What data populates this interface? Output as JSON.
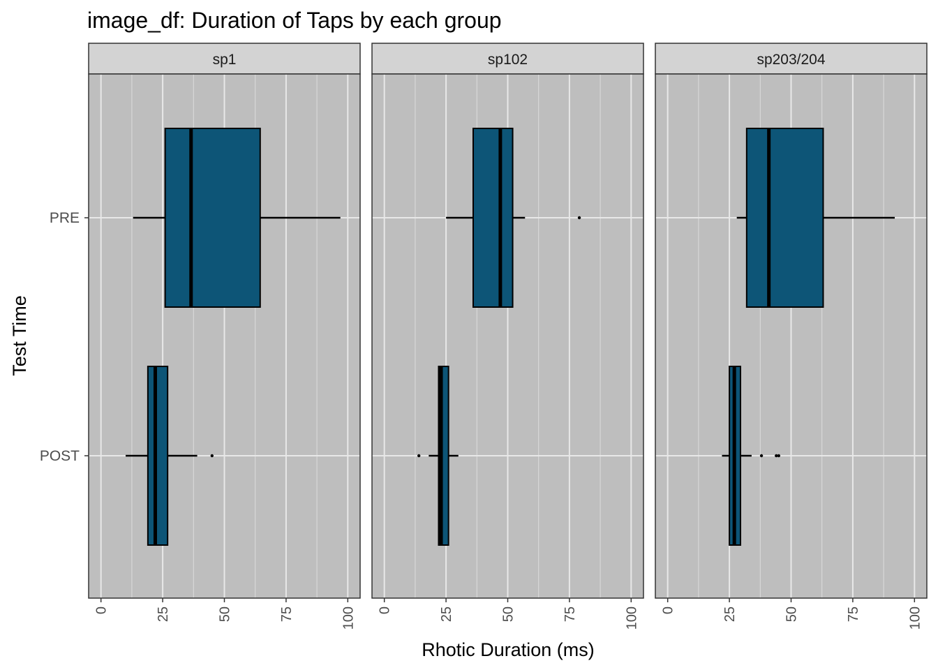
{
  "chart_data": {
    "type": "boxplot",
    "title": "image_df: Duration of Taps by each group",
    "xlabel": "Rhotic Duration (ms)",
    "ylabel": "Test Time",
    "xlim": [
      -5,
      105
    ],
    "x_ticks": [
      0,
      25,
      50,
      75,
      100
    ],
    "x_tick_labels": [
      "0",
      "25",
      "50",
      "75",
      "100"
    ],
    "categories": [
      "PRE",
      "POST"
    ],
    "grid": true,
    "colors": {
      "panel_bg": "#bebebe",
      "grid": "#e8e8e8",
      "strip_bg": "#d3d3d3",
      "box_fill": "#0d5577",
      "outline": "#000000",
      "text": "#000000",
      "tick_text": "#4d4d4d"
    },
    "panels": [
      {
        "name": "sp1",
        "boxes": [
          {
            "category": "PRE",
            "whisker_low": 13,
            "q1": 26,
            "median": 36.5,
            "q3": 64.5,
            "whisker_high": 97,
            "outliers": []
          },
          {
            "category": "POST",
            "whisker_low": 10,
            "q1": 19,
            "median": 22,
            "q3": 27,
            "whisker_high": 39,
            "outliers": [
              45
            ]
          }
        ]
      },
      {
        "name": "sp102",
        "boxes": [
          {
            "category": "PRE",
            "whisker_low": 25,
            "q1": 36,
            "median": 47,
            "q3": 52,
            "whisker_high": 57,
            "outliers": [
              79
            ]
          },
          {
            "category": "POST",
            "whisker_low": 18,
            "q1": 22,
            "median": 23,
            "q3": 26,
            "whisker_high": 30,
            "outliers": [
              14
            ]
          }
        ]
      },
      {
        "name": "sp203/204",
        "boxes": [
          {
            "category": "PRE",
            "whisker_low": 28,
            "q1": 32,
            "median": 41,
            "q3": 63,
            "whisker_high": 92,
            "outliers": []
          },
          {
            "category": "POST",
            "whisker_low": 22,
            "q1": 25,
            "median": 27,
            "q3": 29.5,
            "whisker_high": 34,
            "outliers": [
              38,
              44,
              45
            ]
          }
        ]
      }
    ]
  }
}
